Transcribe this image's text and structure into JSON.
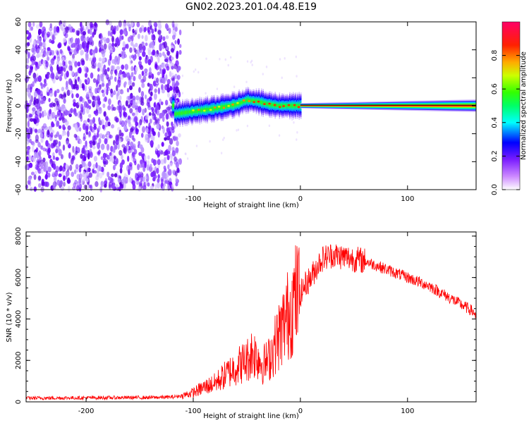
{
  "title": "GN02.2023.201.04.48.E19",
  "chart_data": [
    {
      "type": "heatmap",
      "xlabel": "Height of straight line (km)",
      "ylabel": "Frequency (Hz)",
      "xlim": [
        -256,
        164
      ],
      "ylim": [
        -60,
        60
      ],
      "x_ticks": [
        -200,
        -100,
        0,
        100
      ],
      "y_ticks": [
        -60,
        -40,
        -20,
        0,
        20,
        40,
        60
      ],
      "grid": false,
      "colorbar": {
        "label": "Normalized spectral amplitude",
        "range": [
          0,
          1
        ],
        "ticks": [
          0.0,
          0.2,
          0.4,
          0.6,
          0.8
        ]
      },
      "regions": [
        {
          "x_range": [
            -256,
            -118
          ],
          "description_value": "broadband noise, amplitude ~0.1-0.2"
        },
        {
          "x_range": [
            -118,
            0
          ],
          "description_value": "carrier emerging, amplitude 0.3-0.9"
        },
        {
          "x_range": [
            0,
            164
          ],
          "description_value": "strong carrier near 0 Hz, amplitude ~1.0"
        }
      ],
      "carrier_track": [
        {
          "x": -118,
          "y": -6
        },
        {
          "x": -100,
          "y": -4
        },
        {
          "x": -80,
          "y": -2
        },
        {
          "x": -60,
          "y": 1
        },
        {
          "x": -50,
          "y": 4
        },
        {
          "x": -40,
          "y": 3
        },
        {
          "x": -30,
          "y": 1
        },
        {
          "x": -20,
          "y": 0
        },
        {
          "x": 0,
          "y": 0
        },
        {
          "x": 100,
          "y": 0
        },
        {
          "x": 164,
          "y": 0
        }
      ]
    },
    {
      "type": "line",
      "xlabel": "Height of straight line (km)",
      "ylabel": "SNR (10 * v/v)",
      "xlim": [
        -256,
        164
      ],
      "ylim": [
        0,
        8200
      ],
      "x_ticks": [
        -200,
        -100,
        0,
        100
      ],
      "y_ticks": [
        0,
        2000,
        4000,
        6000,
        8000
      ],
      "grid": false,
      "color": "#ff0000",
      "series": [
        {
          "x": [
            -256,
            -220,
            -180,
            -140,
            -120,
            -110,
            -100,
            -90,
            -80,
            -70,
            -60,
            -50,
            -45,
            -40,
            -35,
            -30,
            -25,
            -20,
            -15,
            -10,
            -5,
            0,
            5,
            10,
            15,
            20,
            30,
            40,
            50,
            60,
            70,
            80,
            90,
            100,
            110,
            120,
            130,
            140,
            150,
            160,
            164
          ],
          "y": [
            180,
            190,
            200,
            210,
            230,
            300,
            450,
            700,
            900,
            1300,
            1700,
            2000,
            2400,
            2200,
            1800,
            2000,
            2600,
            3200,
            3800,
            4400,
            5000,
            5200,
            5700,
            6000,
            6500,
            6900,
            7100,
            7000,
            6900,
            6800,
            6600,
            6400,
            6200,
            6000,
            5800,
            5600,
            5300,
            5000,
            4700,
            4400,
            4200
          ]
        }
      ]
    }
  ]
}
